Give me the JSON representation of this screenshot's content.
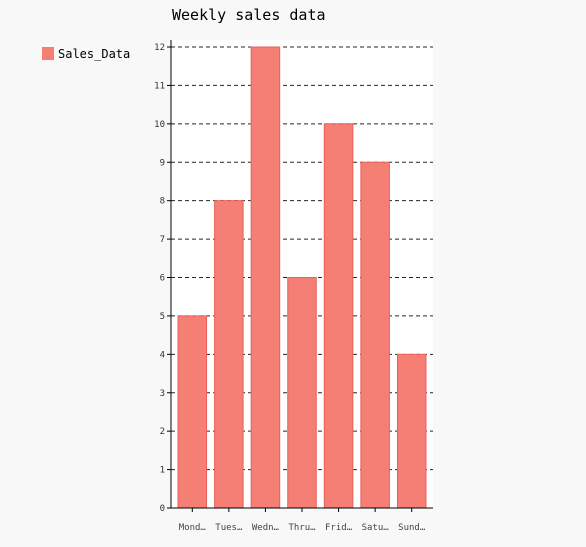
{
  "chart_data": {
    "type": "bar",
    "title": "Weekly sales data",
    "categories": [
      "Mond…",
      "Tues…",
      "Wedn…",
      "Thru…",
      "Frid…",
      "Satu…",
      "Sund…"
    ],
    "series": [
      {
        "name": "Sales_Data",
        "values": [
          5,
          8,
          12,
          6,
          10,
          9,
          4
        ]
      }
    ],
    "ylim": [
      0,
      12
    ],
    "yticks": [
      "0",
      "1",
      "2",
      "3",
      "4",
      "5",
      "6",
      "7",
      "8",
      "9",
      "10",
      "11",
      "12"
    ],
    "grid": true,
    "legend_position": "top-left",
    "colors": {
      "bar_fill": "#f57f75",
      "bar_stroke": "#e8605a",
      "plot_bg": "#ffffff",
      "page_bg": "#f8f8f8"
    }
  }
}
